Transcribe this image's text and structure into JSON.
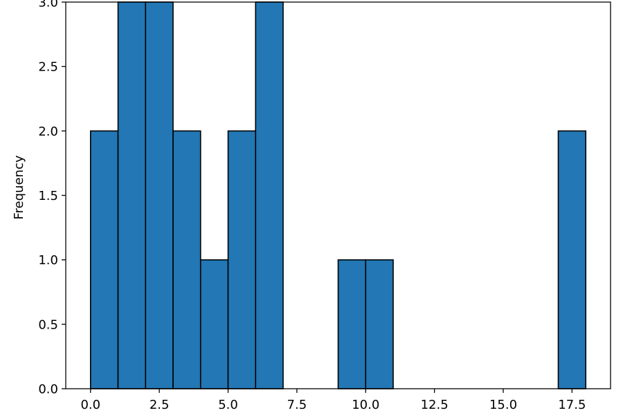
{
  "chart_data": {
    "type": "bar",
    "variant": "histogram",
    "ylabel": "Frequency",
    "xlabel": "",
    "bin_width": 1,
    "bins": [
      {
        "start": 0,
        "end": 1,
        "count": 2
      },
      {
        "start": 1,
        "end": 2,
        "count": 3
      },
      {
        "start": 2,
        "end": 3,
        "count": 3
      },
      {
        "start": 3,
        "end": 4,
        "count": 2
      },
      {
        "start": 4,
        "end": 5,
        "count": 1
      },
      {
        "start": 5,
        "end": 6,
        "count": 2
      },
      {
        "start": 6,
        "end": 7,
        "count": 3
      },
      {
        "start": 7,
        "end": 8,
        "count": 0
      },
      {
        "start": 8,
        "end": 9,
        "count": 0
      },
      {
        "start": 9,
        "end": 10,
        "count": 1
      },
      {
        "start": 10,
        "end": 11,
        "count": 1
      },
      {
        "start": 11,
        "end": 12,
        "count": 0
      },
      {
        "start": 12,
        "end": 13,
        "count": 0
      },
      {
        "start": 13,
        "end": 14,
        "count": 0
      },
      {
        "start": 14,
        "end": 15,
        "count": 0
      },
      {
        "start": 15,
        "end": 16,
        "count": 0
      },
      {
        "start": 16,
        "end": 17,
        "count": 0
      },
      {
        "start": 17,
        "end": 18,
        "count": 2
      }
    ],
    "xlim": [
      -0.9,
      18.9
    ],
    "ylim": [
      0,
      3.0
    ],
    "xticks": [
      0.0,
      2.5,
      5.0,
      7.5,
      10.0,
      12.5,
      15.0,
      17.5
    ],
    "xtick_labels": [
      "0.0",
      "2.5",
      "5.0",
      "7.5",
      "10.0",
      "12.5",
      "15.0",
      "17.5"
    ],
    "yticks": [
      0.0,
      0.5,
      1.0,
      1.5,
      2.0,
      2.5,
      3.0
    ],
    "ytick_labels": [
      "0.0",
      "0.5",
      "1.0",
      "1.5",
      "2.0",
      "2.5",
      "3.0"
    ],
    "grid": false,
    "colors": {
      "bar_fill": "#2277b4",
      "bar_edge": "#000000"
    }
  }
}
